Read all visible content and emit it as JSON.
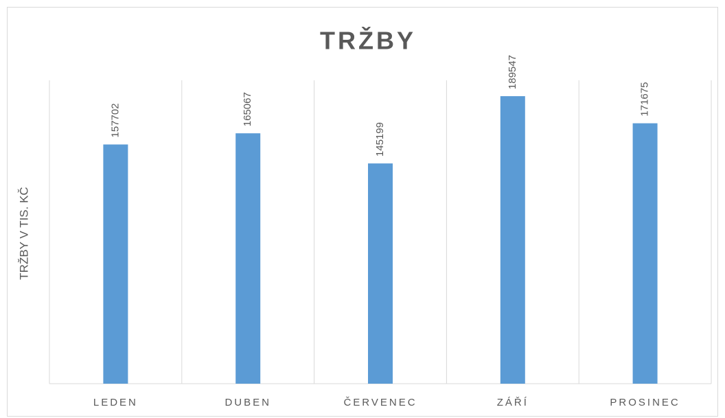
{
  "chart_data": {
    "type": "bar",
    "title": "TRŽBY",
    "y_label": "TRŽBY V TIS. KČ",
    "categories": [
      "LEDEN",
      "DUBEN",
      "ČERVENEC",
      "ZÁŘÍ",
      "PROSINEC"
    ],
    "values": [
      157702,
      165067,
      145199,
      189547,
      171675
    ],
    "color": "#5b9bd5",
    "ylim": [
      0,
      200000
    ]
  }
}
